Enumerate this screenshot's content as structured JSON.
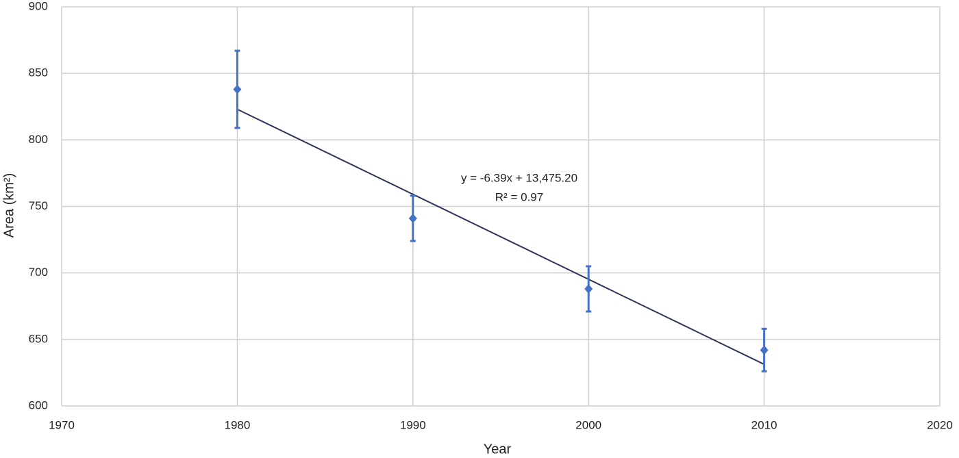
{
  "chart_data": {
    "type": "scatter",
    "x_label": "Year",
    "y_label": "Area (km²)",
    "x": [
      1980,
      1990,
      2000,
      2010
    ],
    "series": [
      {
        "color": "#4472c4",
        "values": [
          838,
          741,
          688,
          642
        ],
        "errors": [
          29,
          17,
          17,
          16
        ]
      }
    ],
    "trendline": {
      "color": "#2e3556",
      "x": [
        1980,
        2010
      ],
      "values": [
        823,
        631.3
      ]
    },
    "annotations": [
      "y = -6.39x + 13,475.20",
      "R² = 0.97"
    ],
    "xlim": [
      1970,
      2020
    ],
    "xticks": [
      1970,
      1980,
      1990,
      2000,
      2010,
      2020
    ],
    "ylim": [
      600,
      900
    ],
    "yticks": [
      600,
      650,
      700,
      750,
      800,
      850,
      900
    ],
    "grid": true
  }
}
